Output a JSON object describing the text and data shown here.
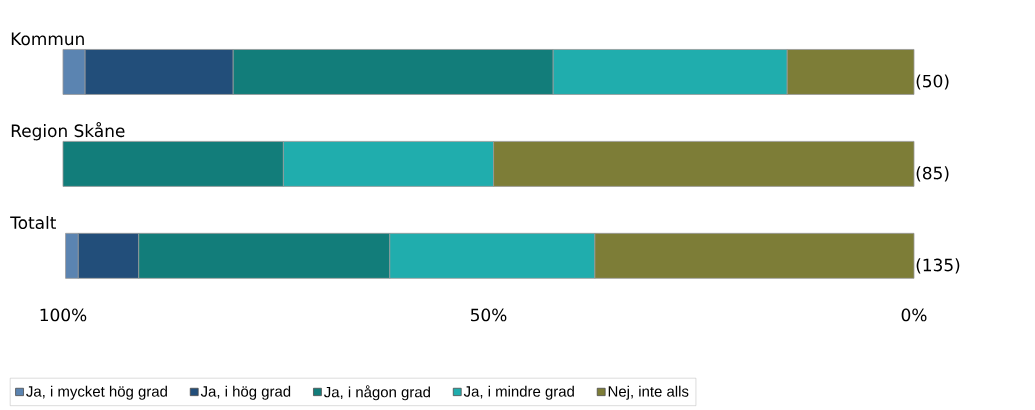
{
  "chart_data": {
    "type": "bar",
    "orientation": "horizontal",
    "stacked": true,
    "categories": [
      "Kommun",
      "Region Skåne",
      "Totalt"
    ],
    "series": [
      {
        "name": "Nej, inte alls",
        "color": "#7d7d37",
        "values": [
          14.9,
          49.4,
          37.5
        ]
      },
      {
        "name": "Ja, i mindre grad",
        "color": "#20adad",
        "values": [
          27.5,
          24.7,
          24.1
        ]
      },
      {
        "name": "Ja, i någon grad",
        "color": "#127d7a",
        "values": [
          37.6,
          25.9,
          29.5
        ]
      },
      {
        "name": "Ja, i hög grad",
        "color": "#224e7a",
        "values": [
          17.4,
          0,
          7.1
        ]
      },
      {
        "name": "Ja, i mycket hög grad",
        "color": "#5b84b1",
        "values": [
          2.6,
          0,
          1.5
        ]
      }
    ],
    "xlim": [
      100,
      0
    ],
    "xticks": [
      {
        "value": 100,
        "label": "100%"
      },
      {
        "value": 50,
        "label": "50%"
      },
      {
        "value": 0,
        "label": "0%"
      }
    ],
    "annotations": [
      "(50)",
      "(85)",
      "(135)"
    ],
    "grid": false,
    "legend": "bottom"
  }
}
